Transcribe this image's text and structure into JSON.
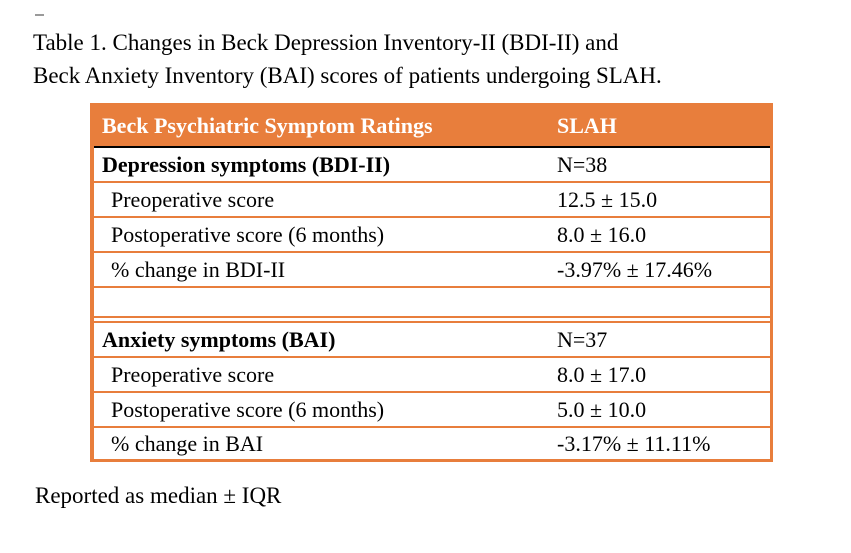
{
  "title": {
    "lines": [
      "Table 1. Changes in Beck Depression Inventory-II (BDI-II) and",
      "Beck Anxiety Inventory (BAI) scores of patients undergoing SLAH."
    ]
  },
  "table": {
    "header": {
      "col1": "Beck Psychiatric Symptom Ratings",
      "col2": "SLAH"
    },
    "rows": [
      {
        "label": "Depression symptoms (BDI-II)",
        "value": "N=38",
        "style": "section"
      },
      {
        "label": "Preoperative score",
        "value": "12.5 ± 15.0",
        "style": "sub"
      },
      {
        "label": "Postoperative score (6 months)",
        "value": "8.0 ± 16.0",
        "style": "sub"
      },
      {
        "label": "% change in BDI-II",
        "value": "-3.97% ± 17.46%",
        "style": "sub"
      },
      {
        "label": "",
        "value": "",
        "style": "spacer"
      },
      {
        "label": "Anxiety symptoms (BAI)",
        "value": "N=37",
        "style": "section"
      },
      {
        "label": "Preoperative score",
        "value": "8.0 ± 17.0",
        "style": "sub"
      },
      {
        "label": "Postoperative score (6 months)",
        "value": "5.0 ± 10.0",
        "style": "sub"
      },
      {
        "label": "% change in BAI",
        "value": "-3.17% ± 11.11%",
        "style": "sub"
      }
    ],
    "colors": {
      "accent_orange": "#e87e3c",
      "header_text": "#ffffff",
      "header_divider": "#000000",
      "body_text": "#000000"
    },
    "stats_note": "Reported as median ± IQR"
  },
  "footnote": {
    "text": "Reported as median ± IQR"
  }
}
